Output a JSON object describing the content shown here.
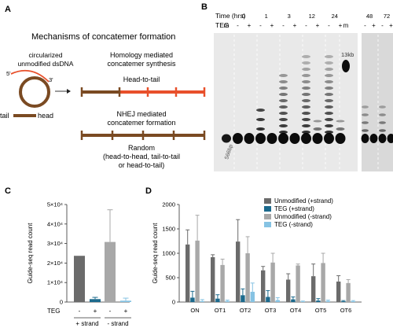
{
  "panels": {
    "a": {
      "label": "A",
      "title": "Mechanisms of concatemer formation",
      "circ_label_1": "circularized",
      "circ_label_2": "unmodified dsDNA",
      "five_prime": "5'",
      "three_prime": "3'",
      "tail_label": "tail",
      "head_label": "head",
      "hmc_line1": "Homology mediated",
      "hmc_line2": "concatemer synthesis",
      "hmc_result": "Head-to-tail",
      "nhej_line1": "NHEJ mediated",
      "nhej_line2": "concatemer formation",
      "random_line1": "Random",
      "random_line2": "(head-to-head, tail-to-tail",
      "random_line3": "or head-to-tail)",
      "colors": {
        "dna": "#7a4a22",
        "highlight": "#e8502b"
      }
    },
    "b": {
      "label": "B",
      "time_label": "Time (hrs)",
      "teg_label": "TEG",
      "marker": "m",
      "timepoints_main": [
        "0",
        "1",
        "3",
        "12",
        "24"
      ],
      "timepoints_side": [
        "48",
        "72"
      ],
      "signs": [
        "-",
        "+"
      ],
      "band_13kb": "13kb",
      "band_566bp": "566bp"
    },
    "c": {
      "label": "C"
    },
    "d": {
      "label": "D"
    }
  },
  "chart_data": [
    {
      "type": "bar",
      "panel": "C",
      "ylabel": "Guide-seq read count",
      "ytick_labels": [
        "0",
        "1×10⁴",
        "2×10⁴",
        "3×10⁴",
        "4×10⁴",
        "5×10⁴"
      ],
      "ylim": [
        0,
        50000
      ],
      "row_label": "TEG",
      "teg": [
        "-",
        "+",
        "-",
        "+"
      ],
      "groups": [
        "+ strand",
        "- strand"
      ],
      "values": [
        23700,
        1500,
        30800,
        700
      ],
      "errors": [
        0,
        900,
        16500,
        1300
      ],
      "colors": [
        "#6b6b6b",
        "#1c6a8d",
        "#a8a8a8",
        "#86c3e3"
      ]
    },
    {
      "type": "bar",
      "panel": "D",
      "ylabel": "Guide-seq read count",
      "ylim": [
        0,
        2000
      ],
      "yticks": [
        0,
        500,
        1000,
        1500,
        2000
      ],
      "categories": [
        "ON",
        "OT1",
        "OT2",
        "OT3",
        "OT4",
        "OT5",
        "OT6"
      ],
      "series": [
        {
          "name": "Unmodified (+strand)",
          "color": "#6b6b6b",
          "values": [
            1180,
            920,
            1240,
            650,
            460,
            530,
            420
          ],
          "errors": [
            300,
            50,
            450,
            80,
            120,
            250,
            120
          ]
        },
        {
          "name": "TEG (+strand)",
          "color": "#1c6a8d",
          "values": [
            90,
            70,
            140,
            105,
            55,
            30,
            15
          ],
          "errors": [
            130,
            80,
            130,
            130,
            50,
            40,
            15
          ]
        },
        {
          "name": "Unmodified (-strand)",
          "color": "#a8a8a8",
          "values": [
            1260,
            760,
            1000,
            810,
            750,
            800,
            390
          ],
          "errors": [
            520,
            120,
            340,
            190,
            30,
            200,
            70
          ]
        },
        {
          "name": "TEG (-strand)",
          "color": "#86c3e3",
          "values": [
            20,
            20,
            210,
            40,
            10,
            20,
            15
          ],
          "errors": [
            30,
            20,
            180,
            50,
            10,
            20,
            15
          ]
        }
      ]
    }
  ]
}
